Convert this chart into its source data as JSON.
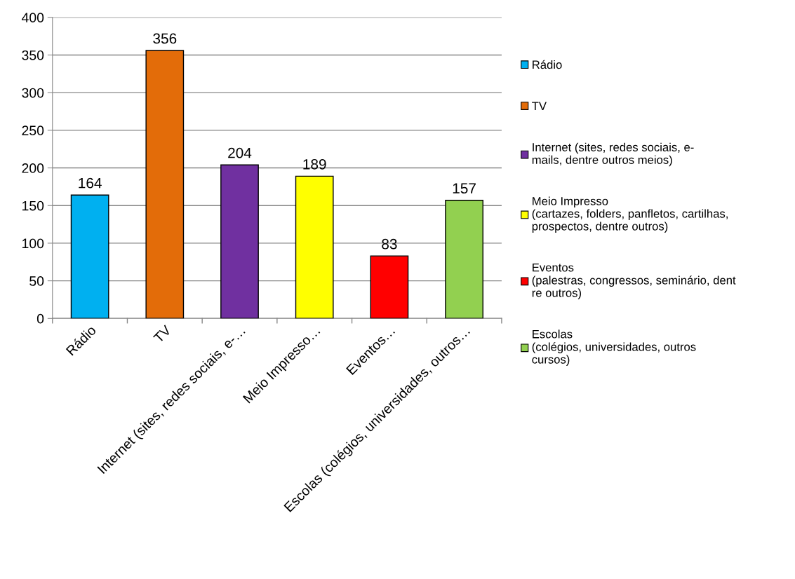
{
  "chart_data": {
    "type": "bar",
    "categories": [
      "Rádio",
      "TV",
      "Internet (sites, redes sociais, e-…",
      "Meio Impresso…",
      "Eventos…",
      "Escolas (colégios, universidades, outros…"
    ],
    "series": [
      {
        "name": "Rádio",
        "color": "#00b0f0",
        "values": [
          164,
          null,
          null,
          null,
          null,
          null
        ]
      },
      {
        "name": "TV",
        "color": "#e36c09",
        "values": [
          null,
          356,
          null,
          null,
          null,
          null
        ]
      },
      {
        "name": "Internet (sites, redes sociais, e-\nmails, dentre outros meios)",
        "color": "#7030a0",
        "values": [
          null,
          null,
          204,
          null,
          null,
          null
        ]
      },
      {
        "name": "Meio Impresso\n(cartazes, folders, panfletos, cartilhas,\nprospectos, dentre outros)",
        "color": "#ffff00",
        "values": [
          null,
          null,
          null,
          189,
          null,
          null
        ]
      },
      {
        "name": "Eventos\n(palestras, congressos, seminário, dent\nre outros)",
        "color": "#ff0000",
        "values": [
          null,
          null,
          null,
          null,
          83,
          null
        ]
      },
      {
        "name": "Escolas\n(colégios, universidades, outros\ncursos)",
        "color": "#92d050",
        "values": [
          null,
          null,
          null,
          null,
          null,
          157
        ]
      }
    ],
    "ylim": [
      0,
      400
    ],
    "yticks": [
      0,
      50,
      100,
      150,
      200,
      250,
      300,
      350,
      400
    ],
    "grid": "y",
    "legend": "right",
    "data_labels": true
  }
}
